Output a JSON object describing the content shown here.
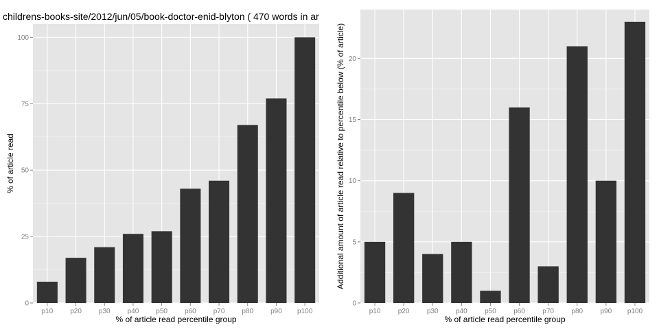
{
  "chart_data": [
    {
      "type": "bar",
      "title": "childrens-books-site/2012/jun/05/book-doctor-enid-blyton ( 470 words in ar",
      "xlabel": "% of article read percentile group",
      "ylabel": "% of article read",
      "categories": [
        "p10",
        "p20",
        "p30",
        "p40",
        "p50",
        "p60",
        "p70",
        "p80",
        "p90",
        "p100"
      ],
      "values": [
        8,
        17,
        21,
        26,
        27,
        43,
        46,
        67,
        77,
        100
      ],
      "ylim": [
        0,
        105
      ],
      "yticks": [
        0,
        25,
        50,
        75,
        100
      ],
      "grid": true,
      "bar_color": "#333333",
      "panel_color": "#e5e5e5"
    },
    {
      "type": "bar",
      "title": "",
      "xlabel": "% of article read percentile group",
      "ylabel": "Additional amount of article read relative to percentile below (% of article)",
      "categories": [
        "p10",
        "p20",
        "p30",
        "p40",
        "p50",
        "p60",
        "p70",
        "p80",
        "p90",
        "p100"
      ],
      "values": [
        5,
        9,
        4,
        5,
        1,
        16,
        3,
        21,
        10,
        23
      ],
      "ylim": [
        0,
        24
      ],
      "yticks": [
        0,
        5,
        10,
        15,
        20
      ],
      "grid": true,
      "bar_color": "#333333",
      "panel_color": "#e5e5e5"
    }
  ]
}
